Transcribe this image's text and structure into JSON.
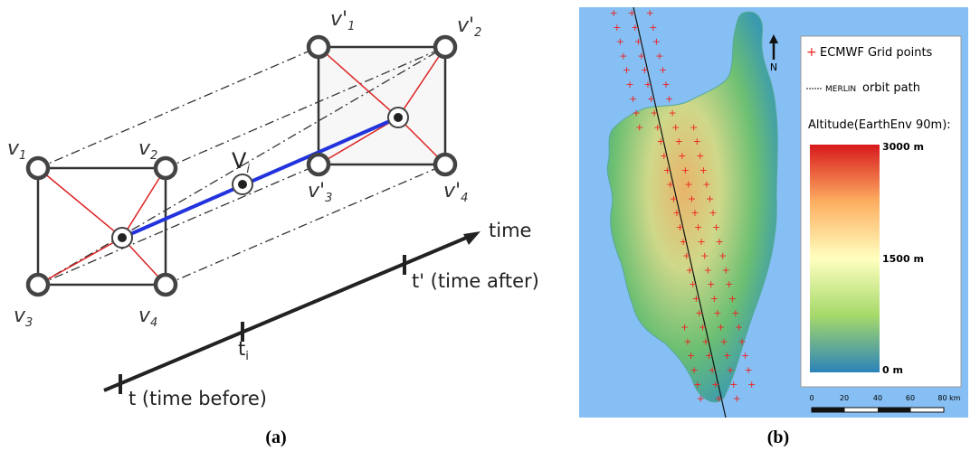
{
  "panel_a": {
    "label": "(a)",
    "corners_before": [
      {
        "base": "v",
        "sub": "1"
      },
      {
        "base": "v",
        "sub": "2"
      },
      {
        "base": "v",
        "sub": "3"
      },
      {
        "base": "v",
        "sub": "4"
      }
    ],
    "corners_after": [
      {
        "base": "v'",
        "sub": "1"
      },
      {
        "base": "v'",
        "sub": "2"
      },
      {
        "base": "v'",
        "sub": "3"
      },
      {
        "base": "v'",
        "sub": "4"
      }
    ],
    "interpolated": {
      "base": "V",
      "sub": "i"
    },
    "time_axis": "time",
    "t_after": "t' (time after)",
    "t_i": {
      "base": "t",
      "sub": "i"
    },
    "t_before": "t (time before)"
  },
  "panel_b": {
    "label": "(b)",
    "legend": {
      "grid_marker": "+",
      "grid_points": "ECMWF Grid points",
      "orbit_marker": "MERLIN",
      "orbit_path": "orbit path",
      "altitude_title": "Altitude(EarthEnv 90m):",
      "colorbar_labels": [
        "3000 m",
        "1500 m",
        "0 m"
      ]
    },
    "north": "N",
    "scale_labels": [
      "0",
      "20",
      "40",
      "60",
      "80 km"
    ]
  }
}
